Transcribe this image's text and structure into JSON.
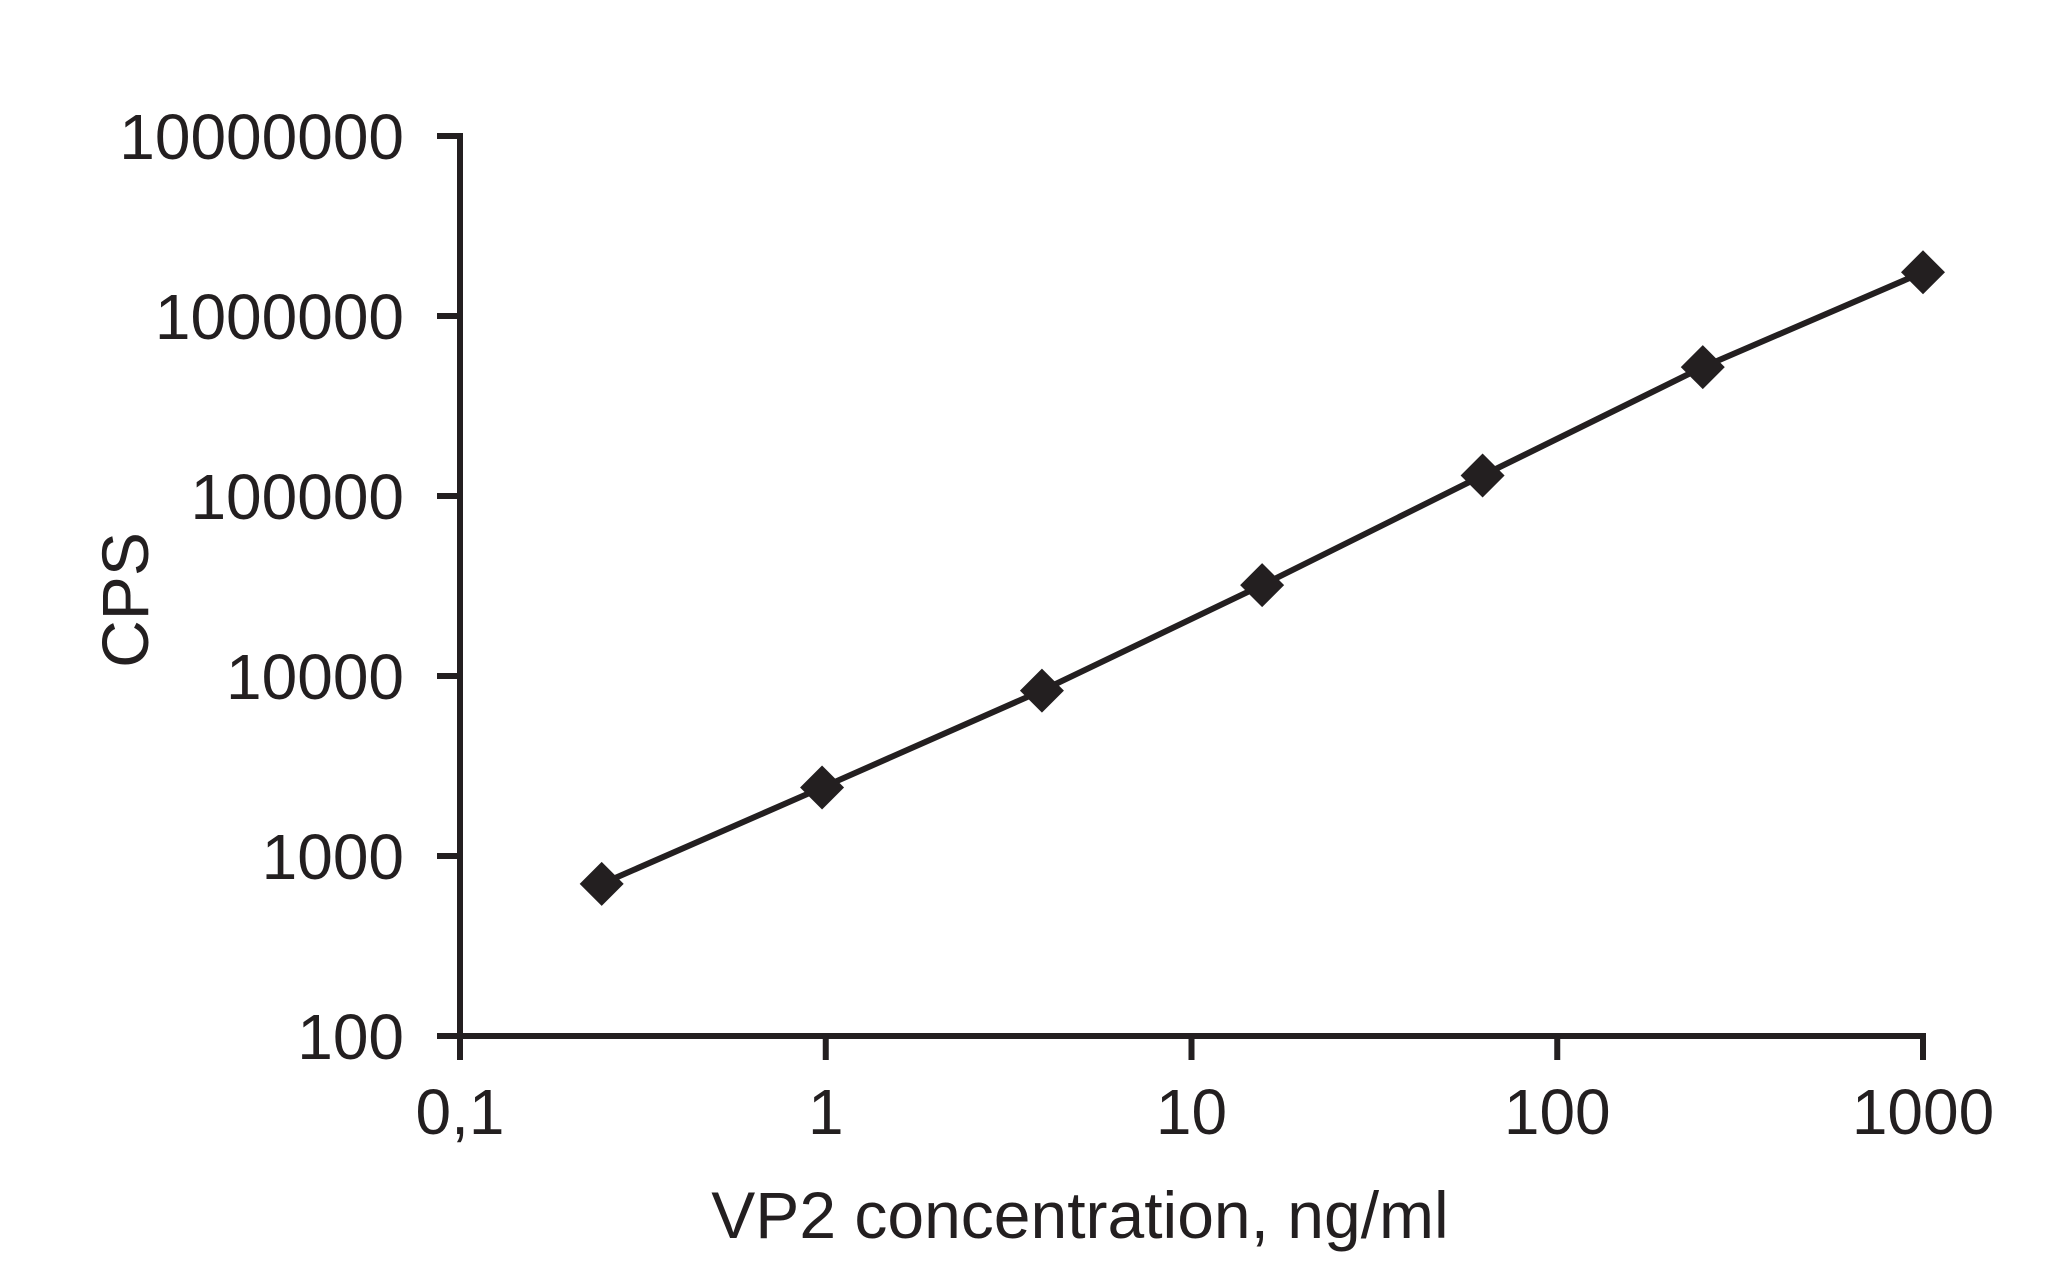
{
  "chart_data": {
    "type": "scatter",
    "title": "",
    "xlabel": "VP2 concentration, ng/ml",
    "ylabel": "CPS",
    "x_scale": "log",
    "y_scale": "log",
    "xlim": [
      0.1,
      1000
    ],
    "ylim": [
      100,
      10000000
    ],
    "x_ticks": [
      "0,1",
      "1",
      "10",
      "100",
      "1000"
    ],
    "y_ticks": [
      "100",
      "1000",
      "10000",
      "100000",
      "1000000",
      "10000000"
    ],
    "grid": false,
    "marker": "diamond",
    "color": "#231f20",
    "series": [
      {
        "x": [
          0.244,
          0.977,
          3.9,
          15.6,
          62.5,
          250,
          1000
        ],
        "y": [
          700,
          2400,
          8300,
          32000,
          130000,
          520000,
          1750000
        ]
      }
    ]
  }
}
